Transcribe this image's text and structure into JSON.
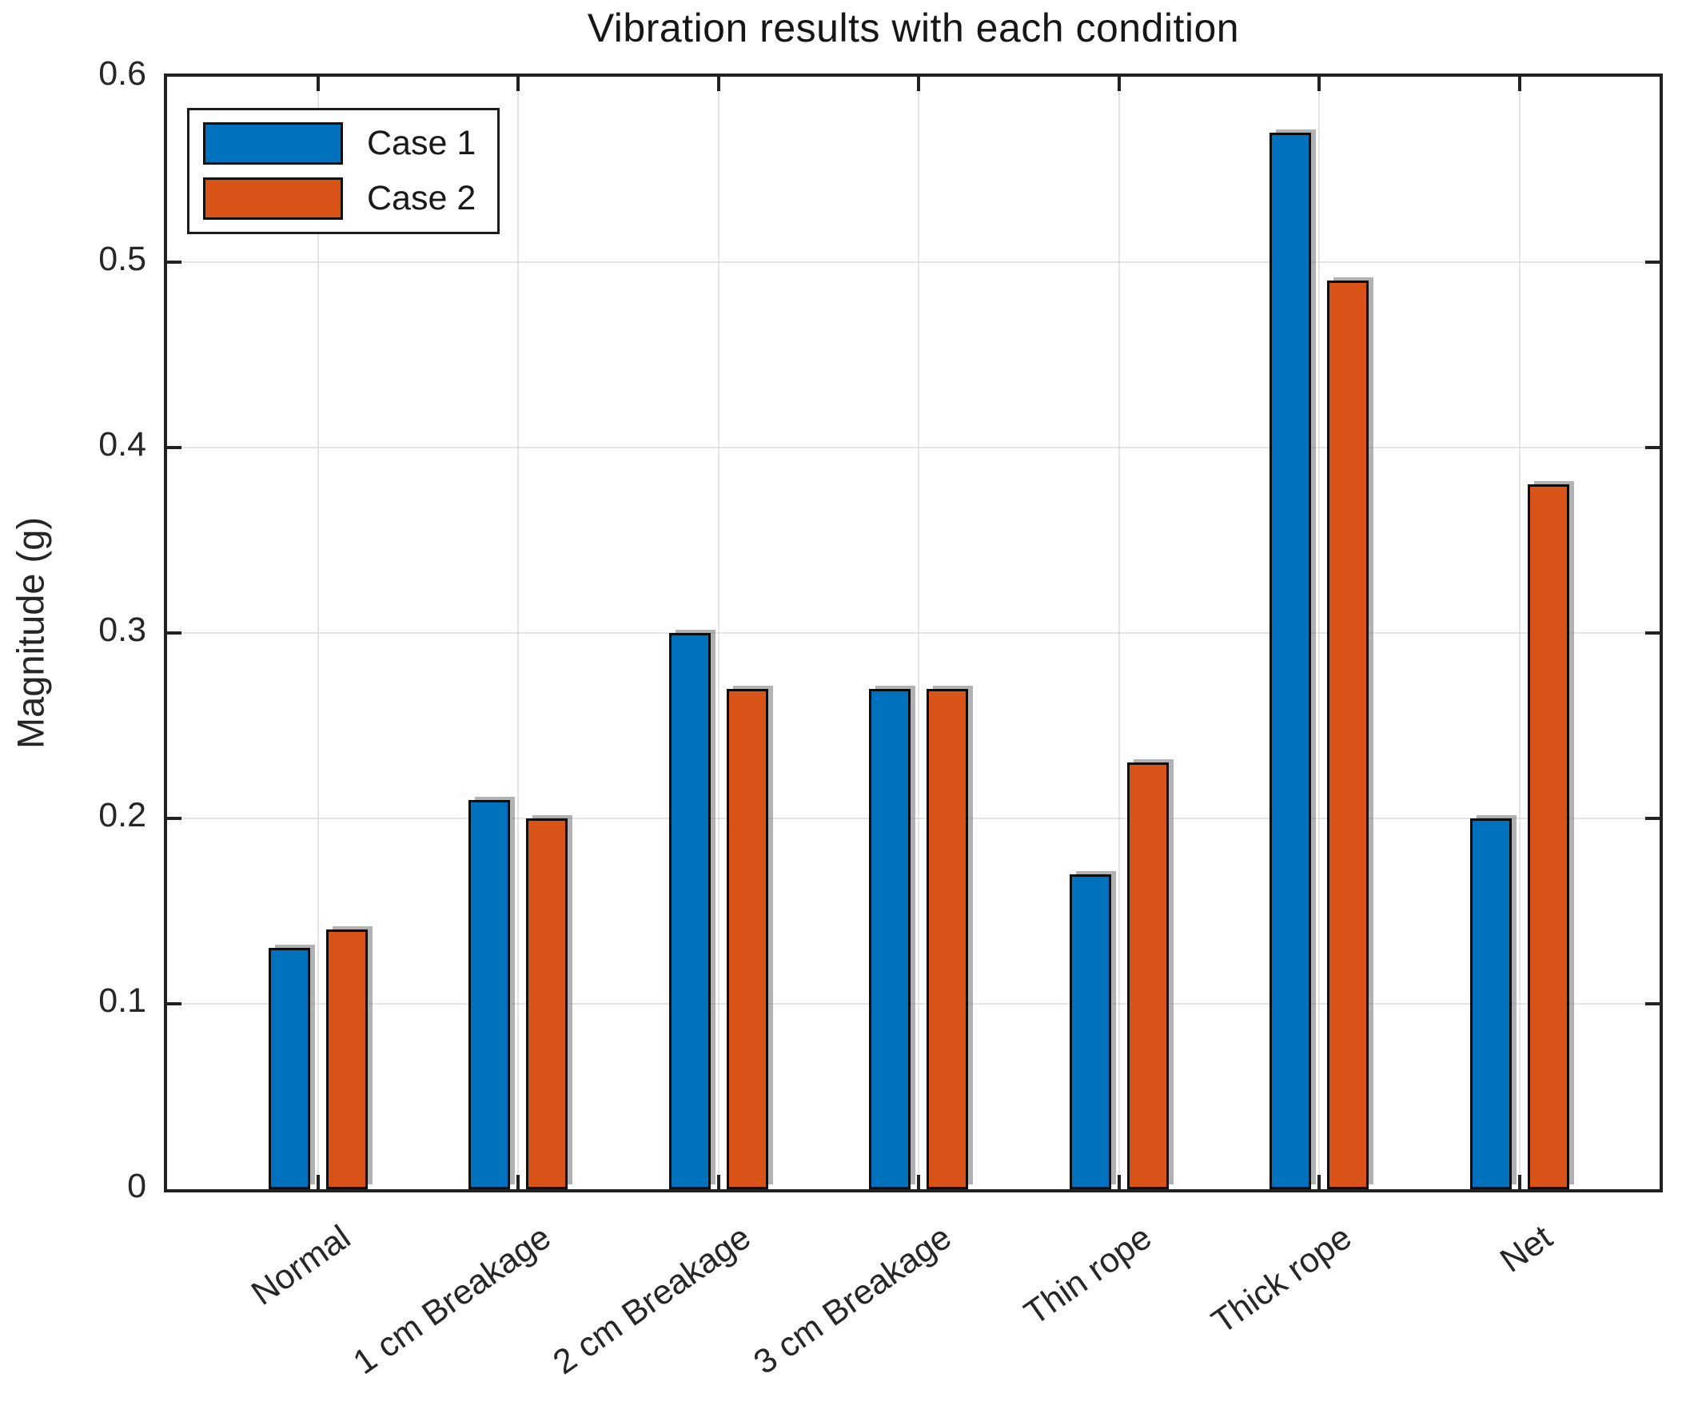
{
  "title": "Vibration results with each condition",
  "axes": {
    "ylabel": "Magnitude (g)",
    "y_ticks": [
      "0",
      "0.1",
      "0.2",
      "0.3",
      "0.4",
      "0.5",
      "0.6"
    ],
    "y_max": 0.6
  },
  "legend": {
    "entries": [
      {
        "label": "Case 1",
        "color": "#0072BD"
      },
      {
        "label": "Case 2",
        "color": "#D95319"
      }
    ]
  },
  "chart_data": {
    "type": "bar",
    "title": "Vibration results with each condition",
    "categories": [
      "Normal",
      "1 cm Breakage",
      "2 cm Breakage",
      "3 cm Breakage",
      "Thin rope",
      "Thick rope",
      "Net"
    ],
    "series": [
      {
        "name": "Case 1",
        "color": "#0072BD",
        "values": [
          0.13,
          0.21,
          0.3,
          0.27,
          0.17,
          0.57,
          0.2
        ]
      },
      {
        "name": "Case 2",
        "color": "#D95319",
        "values": [
          0.14,
          0.2,
          0.27,
          0.27,
          0.23,
          0.49,
          0.38
        ]
      }
    ],
    "xlabel": "",
    "ylabel": "Magnitude (g)",
    "ylim": [
      0,
      0.6
    ],
    "grid": true,
    "legend_position": "top-left"
  }
}
